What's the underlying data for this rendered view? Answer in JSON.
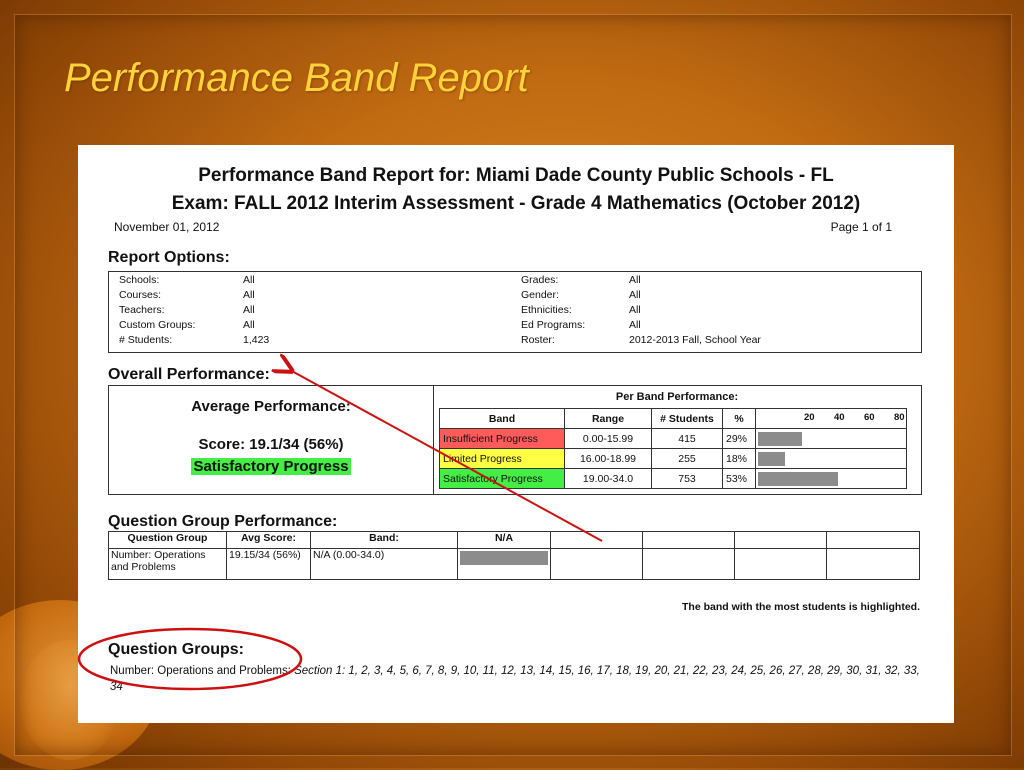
{
  "slide": {
    "title": "Performance Band Report"
  },
  "report": {
    "heading1": "Performance Band Report for: Miami Dade County Public Schools - FL",
    "heading2": "Exam: FALL 2012 Interim Assessment - Grade 4 Mathematics (October 2012)",
    "date": "November 01, 2012",
    "page": "Page 1 of 1",
    "options_title": "Report Options:",
    "options_left": [
      {
        "label": "Schools:",
        "value": "All"
      },
      {
        "label": "Courses:",
        "value": "All"
      },
      {
        "label": "Teachers:",
        "value": "All"
      },
      {
        "label": "Custom Groups:",
        "value": "All"
      },
      {
        "label": "# Students:",
        "value": "1,423"
      }
    ],
    "options_right": [
      {
        "label": "Grades:",
        "value": "All"
      },
      {
        "label": "Gender:",
        "value": "All"
      },
      {
        "label": "Ethnicities:",
        "value": "All"
      },
      {
        "label": "Ed Programs:",
        "value": "All"
      },
      {
        "label": "Roster:",
        "value": "2012-2013 Fall, School Year"
      }
    ],
    "overall_title": "Overall Performance:",
    "avg_title": "Average Performance:",
    "score": "Score: 19.1/34 (56%)",
    "score_band": "Satisfactory Progress",
    "per_band_title": "Per Band Performance:",
    "band_headers": {
      "band": "Band",
      "range": "Range",
      "students": "# Students",
      "pct": "%"
    },
    "scale_ticks": [
      "20",
      "40",
      "60",
      "80"
    ],
    "bands": [
      {
        "band": "Insufficient Progress",
        "range": "0.00-15.99",
        "students": "415",
        "pct": "29%",
        "pct_value": 29,
        "color": "#ff5b5b"
      },
      {
        "band": "Limited Progress",
        "range": "16.00-18.99",
        "students": "255",
        "pct": "18%",
        "pct_value": 18,
        "color": "#ffff44"
      },
      {
        "band": "Satisfactory Progress",
        "range": "19.00-34.0",
        "students": "753",
        "pct": "53%",
        "pct_value": 53,
        "color": "#44ee44"
      }
    ],
    "qg_title": "Question Group Performance:",
    "qg_headers": {
      "group": "Question Group",
      "avg": "Avg Score:",
      "band": "Band:",
      "na": "N/A"
    },
    "qg_row": {
      "group": "Number: Operations and Problems",
      "avg": "19.15/34 (56%)",
      "band": "N/A (0.00-34.0)"
    },
    "note": "The band with the most students is highlighted.",
    "groups_title": "Question Groups:",
    "groups_label": "Number: Operations and Problems:",
    "groups_items": "Section 1: 1, 2, 3, 4, 5, 6, 7, 8, 9, 10, 11, 12, 13, 14, 15, 16, 17, 18, 19, 20, 21, 22, 23, 24, 25, 26, 27, 28, 29, 30, 31, 32, 33, 34"
  },
  "colors": {
    "title": "#ffd23a",
    "annotation": "#cc1111",
    "highlight": "#44ee44"
  }
}
